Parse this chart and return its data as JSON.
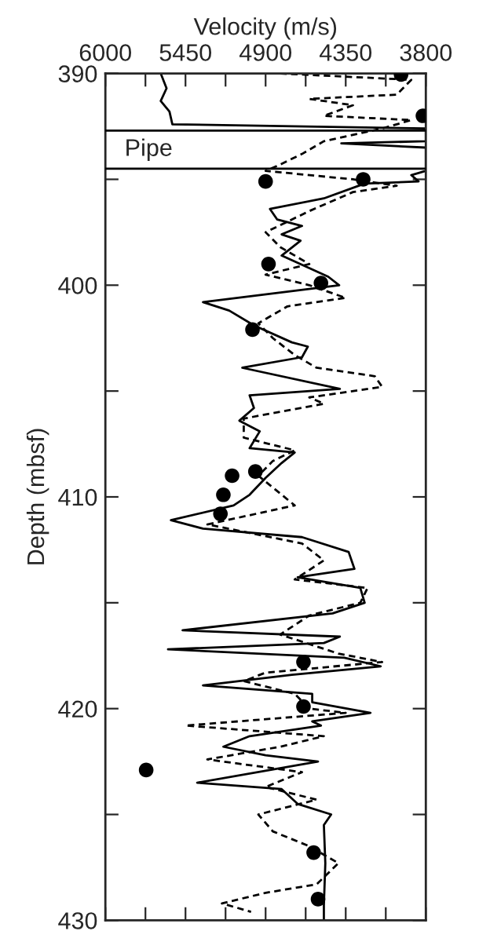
{
  "chart_data": {
    "type": "line",
    "orientation": "horizontal",
    "xlabel": "Velocity (m/s)",
    "ylabel": "Depth (mbsf)",
    "xlim": [
      6000,
      3800
    ],
    "ylim": [
      430,
      390
    ],
    "xticks": [
      6000,
      {
        "value": 5725,
        "label": null
      },
      5450,
      {
        "value": 5175,
        "label": null
      },
      4900,
      {
        "value": 4625,
        "label": null
      },
      4350,
      {
        "value": 4075,
        "label": null
      },
      3800
    ],
    "yticks": [
      390,
      {
        "value": 395,
        "label": null
      },
      400,
      {
        "value": 405,
        "label": null
      },
      410,
      {
        "value": 415,
        "label": null
      },
      420,
      {
        "value": 425,
        "label": null
      },
      430
    ],
    "grid": false,
    "legend": false,
    "ref_lines": [
      {
        "axis": "y",
        "value": 392.7,
        "color": "#000000",
        "line_style": "solid"
      },
      {
        "axis": "y",
        "value": 394.5,
        "color": "#000000",
        "line_style": "solid"
      }
    ],
    "annotations": [
      "Pipe"
    ],
    "series": [
      {
        "line_style": "solid",
        "color": "#000000",
        "x": [
          390,
          390.7,
          391.3,
          391.8,
          392.4,
          392.6,
          393.2,
          393.3,
          393.5,
          394.6,
          394.8,
          395.1,
          395.2,
          395.9,
          396.4,
          396.9,
          397.2,
          397.6,
          397.9,
          398.6,
          399.6,
          400.0,
          400.8,
          401.2,
          401.9,
          402.7,
          402.9,
          403.4,
          403.9,
          404.9,
          405.2,
          405.8,
          406.4,
          406.9,
          407.7,
          407.9,
          408.4,
          409.1,
          409.9,
          410.4,
          411.1,
          411.5,
          411.9,
          412.6,
          413.4,
          413.8,
          414.3,
          415.0,
          415.5,
          416.3,
          416.6,
          416.9,
          417.2,
          417.6,
          418.0,
          418.4,
          418.9,
          419.3,
          419.7,
          420.2,
          420.6,
          420.8,
          421.3,
          421.8,
          422.2,
          422.5,
          423.5,
          423.8,
          424.5,
          425.0,
          425.5,
          427.3,
          429.3,
          430
        ],
        "values": [
          5620,
          5580,
          5620,
          5560,
          5540,
          3800,
          3800,
          4380,
          3800,
          3800,
          3900,
          3850,
          4220,
          4500,
          4870,
          4820,
          4650,
          4790,
          4660,
          4790,
          4470,
          4395,
          5330,
          5150,
          4980,
          4720,
          4610,
          4650,
          5060,
          4390,
          5010,
          4980,
          5080,
          4940,
          5010,
          4700,
          4790,
          4900,
          5010,
          5120,
          5550,
          5330,
          4650,
          4330,
          4290,
          4680,
          4250,
          4220,
          4440,
          5470,
          4390,
          4500,
          5570,
          4360,
          4110,
          4720,
          5330,
          4580,
          4580,
          4180,
          4580,
          4520,
          5010,
          5190,
          4900,
          4540,
          5370,
          4790,
          4680,
          4450,
          4500,
          4490,
          4500,
          4500
        ]
      },
      {
        "line_style": "dashed",
        "color": "#000000",
        "x": [
          390,
          390.3,
          391.0,
          391.2,
          391.5,
          392.0,
          392.2,
          392.6,
          393.2,
          393.8,
          394.3,
          394.6,
          395.0,
          395.3,
          395.6,
          396.5,
          397.5,
          398.2,
          399.0,
          399.5,
          400.0,
          400.6,
          401.0,
          401.8,
          402.5,
          403.3,
          403.9,
          404.3,
          404.8,
          405.3,
          405.6,
          406.3,
          407.2,
          407.8,
          408.3,
          409.0,
          410.4,
          411.3,
          412.2,
          413.0,
          413.9,
          414.3,
          415.0,
          415.6,
          416.5,
          417.4,
          417.8,
          418.3,
          418.7,
          419.3,
          420.0,
          420.2,
          420.8,
          421.3,
          421.8,
          422.4,
          423.0,
          423.7,
          424.3,
          425.0,
          425.8,
          426.5,
          427.3,
          428.3,
          428.7,
          429.2,
          429.6
        ],
        "values": [
          4800,
          3900,
          4000,
          4600,
          4300,
          4500,
          3900,
          4100,
          4500,
          4650,
          4800,
          4900,
          4300,
          4000,
          4300,
          4600,
          4900,
          4800,
          4600,
          4900,
          4600,
          4350,
          4750,
          4950,
          4850,
          4700,
          4550,
          4150,
          4100,
          4600,
          4500,
          5050,
          5050,
          4700,
          4850,
          4950,
          4700,
          5300,
          4650,
          4500,
          4700,
          4200,
          4250,
          4600,
          4800,
          4400,
          4100,
          4900,
          5050,
          4700,
          4600,
          4350,
          5450,
          4500,
          4800,
          5300,
          4650,
          4900,
          4550,
          4950,
          4850,
          4600,
          4400,
          4550,
          4900,
          5200,
          5000
        ]
      },
      {
        "type": "scatter",
        "marker": "circle",
        "color": "#000000",
        "x": [
          390.05,
          392.0,
          395.1,
          395.0,
          399.0,
          399.9,
          402.1,
          409.0,
          408.8,
          409.9,
          410.8,
          417.8,
          419.9,
          422.9,
          426.8,
          429.0
        ],
        "values": [
          3970,
          3820,
          4900,
          4230,
          4880,
          4520,
          4990,
          5130,
          4970,
          5190,
          5210,
          4640,
          4640,
          5720,
          4570,
          4540
        ]
      }
    ]
  }
}
